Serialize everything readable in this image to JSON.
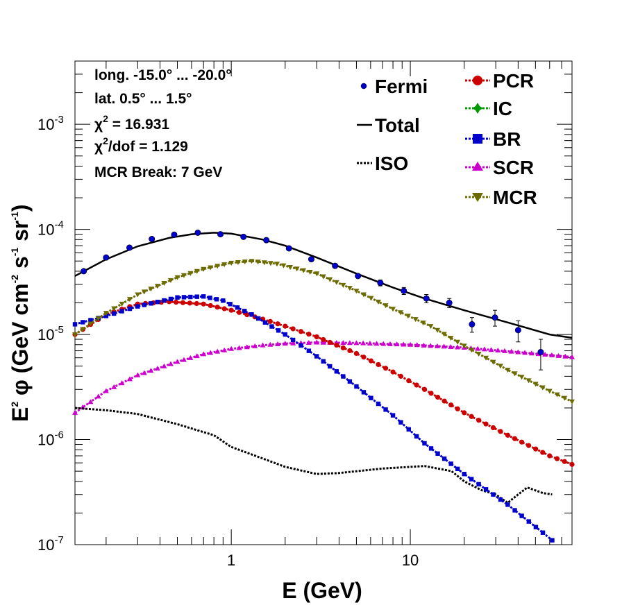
{
  "chart_data": {
    "type": "line",
    "xscale": "log",
    "yscale": "log",
    "xlim": [
      0.134,
      80
    ],
    "ylim": [
      1e-07,
      0.004
    ],
    "xlabel": "E (GeV)",
    "ylabel": {
      "main": "E",
      "sup1": "2",
      "phi": " φ (GeV cm",
      "sup2": "-2",
      "s": " s",
      "sup3": "-1",
      "sr": " sr",
      "sup4": "-1",
      "close": ")"
    },
    "xticks": [
      {
        "v": 1,
        "label": "1"
      },
      {
        "v": 10,
        "label": "10"
      }
    ],
    "yticks": [
      {
        "v": 1e-07,
        "base": "10",
        "exp": "-7"
      },
      {
        "v": 1e-06,
        "base": "10",
        "exp": "-6"
      },
      {
        "v": 1e-05,
        "base": "10",
        "exp": "-5"
      },
      {
        "v": 0.0001,
        "base": "10",
        "exp": "-4"
      },
      {
        "v": 0.001,
        "base": "10",
        "exp": "-3"
      }
    ],
    "info": {
      "line1": "long. -15.0° ... -20.0°",
      "line2": "lat. 0.5° ... 1.5°",
      "chi_sym": "χ",
      "chi_sup": "2",
      "chi_val": " = 16.931",
      "chidof_val": "/dof = 1.129",
      "line5": "MCR Break:  7 GeV"
    },
    "legend": [
      {
        "key": "fermi",
        "label": "Fermi"
      },
      {
        "key": "total",
        "label": "Total"
      },
      {
        "key": "iso",
        "label": "ISO"
      },
      {
        "key": "pcr",
        "label": "PCR"
      },
      {
        "key": "ic",
        "label": "IC"
      },
      {
        "key": "br",
        "label": "BR"
      },
      {
        "key": "scr",
        "label": "SCR"
      },
      {
        "key": "mcr",
        "label": "MCR"
      }
    ],
    "fermi": [
      {
        "x": 0.15,
        "y": 4e-05,
        "err": 0
      },
      {
        "x": 0.2,
        "y": 5.4e-05,
        "err": 0
      },
      {
        "x": 0.27,
        "y": 6.7e-05,
        "err": 0
      },
      {
        "x": 0.36,
        "y": 8.1e-05,
        "err": 0
      },
      {
        "x": 0.48,
        "y": 8.9e-05,
        "err": 0
      },
      {
        "x": 0.65,
        "y": 9.3e-05,
        "err": 0
      },
      {
        "x": 0.87,
        "y": 9e-05,
        "err": 0
      },
      {
        "x": 1.17,
        "y": 8.5e-05,
        "err": 0
      },
      {
        "x": 1.57,
        "y": 7.9e-05,
        "err": 0
      },
      {
        "x": 2.1,
        "y": 6.6e-05,
        "err": 0
      },
      {
        "x": 2.8,
        "y": 5.2e-05,
        "err": 0
      },
      {
        "x": 3.8,
        "y": 4.5e-05,
        "err": 0
      },
      {
        "x": 5.1,
        "y": 3.6e-05,
        "err": 0
      },
      {
        "x": 6.8,
        "y": 3.1e-05,
        "err": 2e-06
      },
      {
        "x": 9.2,
        "y": 2.6e-05,
        "err": 2e-06
      },
      {
        "x": 12.3,
        "y": 2.2e-05,
        "err": 2e-06
      },
      {
        "x": 16.5,
        "y": 2e-05,
        "err": 2e-06
      },
      {
        "x": 22.1,
        "y": 1.25e-05,
        "err": 2e-06
      },
      {
        "x": 29.7,
        "y": 1.45e-05,
        "err": 2.5e-06
      },
      {
        "x": 40,
        "y": 1.1e-05,
        "err": 2.5e-06
      },
      {
        "x": 53.5,
        "y": 6.8e-06,
        "err": 2.2e-06
      }
    ],
    "series": [
      {
        "name": "Total",
        "color": "#000000",
        "style": "solid",
        "marker": "none",
        "points": [
          [
            0.134,
            3.6e-05
          ],
          [
            0.2,
            5.2e-05
          ],
          [
            0.3,
            6.9e-05
          ],
          [
            0.45,
            8.3e-05
          ],
          [
            0.6,
            9e-05
          ],
          [
            0.8,
            9.3e-05
          ],
          [
            1.0,
            9.1e-05
          ],
          [
            1.5,
            8e-05
          ],
          [
            2.0,
            7e-05
          ],
          [
            3.0,
            5.4e-05
          ],
          [
            5.0,
            3.8e-05
          ],
          [
            8.0,
            2.8e-05
          ],
          [
            12.0,
            2.2e-05
          ],
          [
            20.0,
            1.7e-05
          ],
          [
            35.0,
            1.3e-05
          ],
          [
            60.0,
            1e-05
          ],
          [
            80.0,
            9.3e-06
          ]
        ]
      },
      {
        "name": "MCR",
        "color": "#6b6b00",
        "style": "dotted",
        "marker": "triangle-down",
        "points": [
          [
            0.134,
            1e-05
          ],
          [
            0.2,
            1.6e-05
          ],
          [
            0.3,
            2.4e-05
          ],
          [
            0.5,
            3.5e-05
          ],
          [
            0.7,
            4.2e-05
          ],
          [
            1.0,
            4.8e-05
          ],
          [
            1.3,
            5e-05
          ],
          [
            1.8,
            4.7e-05
          ],
          [
            3.0,
            3.8e-05
          ],
          [
            5.0,
            2.6e-05
          ],
          [
            8.0,
            1.75e-05
          ],
          [
            13.0,
            1.2e-05
          ],
          [
            20.0,
            7.8e-06
          ],
          [
            35.0,
            4.6e-06
          ],
          [
            60.0,
            2.9e-06
          ],
          [
            80.0,
            2.3e-06
          ]
        ]
      },
      {
        "name": "BR",
        "color": "#0000cc",
        "style": "dotted",
        "marker": "square",
        "points": [
          [
            0.134,
            1.25e-05
          ],
          [
            0.2,
            1.5e-05
          ],
          [
            0.3,
            1.85e-05
          ],
          [
            0.5,
            2.25e-05
          ],
          [
            0.7,
            2.3e-05
          ],
          [
            0.9,
            2.1e-05
          ],
          [
            1.3,
            1.55e-05
          ],
          [
            2.0,
            1e-05
          ],
          [
            3.0,
            6.2e-06
          ],
          [
            5.0,
            3.2e-06
          ],
          [
            8.0,
            1.7e-06
          ],
          [
            12.0,
            9.2e-07
          ],
          [
            20.0,
            4.7e-07
          ],
          [
            35.0,
            2.4e-07
          ],
          [
            55.0,
            1.3e-07
          ],
          [
            62.0,
            1.1e-07
          ]
        ]
      },
      {
        "name": "PCR",
        "color": "#cc0000",
        "style": "dotted",
        "marker": "circle",
        "points": [
          [
            0.134,
            1e-05
          ],
          [
            0.2,
            1.55e-05
          ],
          [
            0.3,
            1.95e-05
          ],
          [
            0.45,
            2.05e-05
          ],
          [
            0.7,
            1.95e-05
          ],
          [
            1.0,
            1.7e-05
          ],
          [
            1.5,
            1.4e-05
          ],
          [
            2.0,
            1.2e-05
          ],
          [
            3.0,
            9.5e-06
          ],
          [
            5.0,
            6.6e-06
          ],
          [
            8.0,
            4.4e-06
          ],
          [
            12.0,
            3e-06
          ],
          [
            20.0,
            1.8e-06
          ],
          [
            35.0,
            1.1e-06
          ],
          [
            60.0,
            7e-07
          ],
          [
            80.0,
            5.8e-07
          ]
        ]
      },
      {
        "name": "SCR",
        "color": "#cc00cc",
        "style": "dotted",
        "marker": "triangle-up",
        "points": [
          [
            0.134,
            1.8e-06
          ],
          [
            0.2,
            2.9e-06
          ],
          [
            0.3,
            4.1e-06
          ],
          [
            0.5,
            5.5e-06
          ],
          [
            0.7,
            6.5e-06
          ],
          [
            1.0,
            7.3e-06
          ],
          [
            1.5,
            7.9e-06
          ],
          [
            2.0,
            8.2e-06
          ],
          [
            3.0,
            8.4e-06
          ],
          [
            5.0,
            8.3e-06
          ],
          [
            10.0,
            8e-06
          ],
          [
            20.0,
            7.5e-06
          ],
          [
            40.0,
            6.8e-06
          ],
          [
            80.0,
            6.1e-06
          ]
        ]
      },
      {
        "name": "ISO",
        "color": "#000000",
        "style": "dotted",
        "marker": "none",
        "points": [
          [
            0.134,
            2e-06
          ],
          [
            0.2,
            1.9e-06
          ],
          [
            0.3,
            1.75e-06
          ],
          [
            0.5,
            1.4e-06
          ],
          [
            0.8,
            1.1e-06
          ],
          [
            1.0,
            8.5e-07
          ],
          [
            1.5,
            6.6e-07
          ],
          [
            2.0,
            5.5e-07
          ],
          [
            3.0,
            4.7e-07
          ],
          [
            4.0,
            4.8e-07
          ],
          [
            7.0,
            5.3e-07
          ],
          [
            12.0,
            5.6e-07
          ],
          [
            17.0,
            5e-07
          ],
          [
            20.0,
            4e-07
          ],
          [
            25.0,
            3.3e-07
          ],
          [
            30.0,
            3e-07
          ],
          [
            35.0,
            2.5e-07
          ],
          [
            40.0,
            3e-07
          ],
          [
            45.0,
            3.5e-07
          ],
          [
            55.0,
            3.1e-07
          ],
          [
            62.0,
            3e-07
          ]
        ]
      }
    ]
  }
}
